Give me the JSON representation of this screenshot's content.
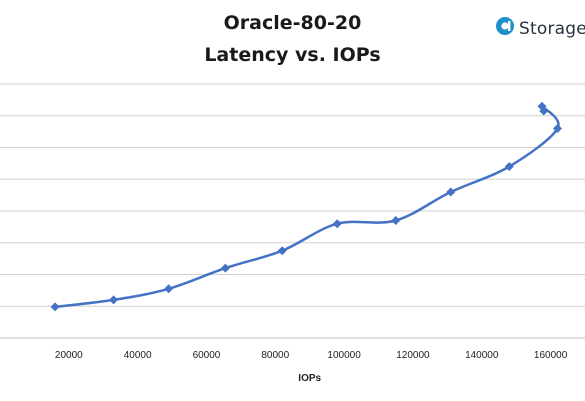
{
  "title_line1": "Oracle-80-20",
  "title_line2": "Latency vs. IOPs",
  "brand": {
    "text": "Storage",
    "icon": "storagereview-logo-icon",
    "color": "#1e90c8"
  },
  "chart_data": {
    "type": "line",
    "title": "Oracle-80-20 Latency vs. IOPs",
    "xlabel": "IOPs",
    "ylabel": "",
    "xlim": [
      0,
      170000
    ],
    "x_ticks": [
      20000,
      40000,
      60000,
      80000,
      100000,
      120000,
      140000,
      160000
    ],
    "x_tick_labels": [
      "20000",
      "40000",
      "60000",
      "80000",
      "100000",
      "120000",
      "140000",
      "160000"
    ],
    "ylim": [
      0,
      8
    ],
    "y_gridlines": [
      1,
      2,
      3,
      4,
      5,
      6,
      7,
      8
    ],
    "grid": true,
    "legend": "none",
    "series_color": "#4472c4",
    "marker": "diamond",
    "series": [
      {
        "x": [
          16000,
          33000,
          49000,
          65500,
          82000,
          98000,
          115000,
          131000,
          148000,
          162000,
          157500,
          158000
        ],
        "y": [
          0.98,
          1.2,
          1.55,
          2.2,
          2.75,
          3.6,
          3.7,
          4.6,
          5.4,
          6.6,
          7.3,
          7.15
        ]
      }
    ]
  }
}
